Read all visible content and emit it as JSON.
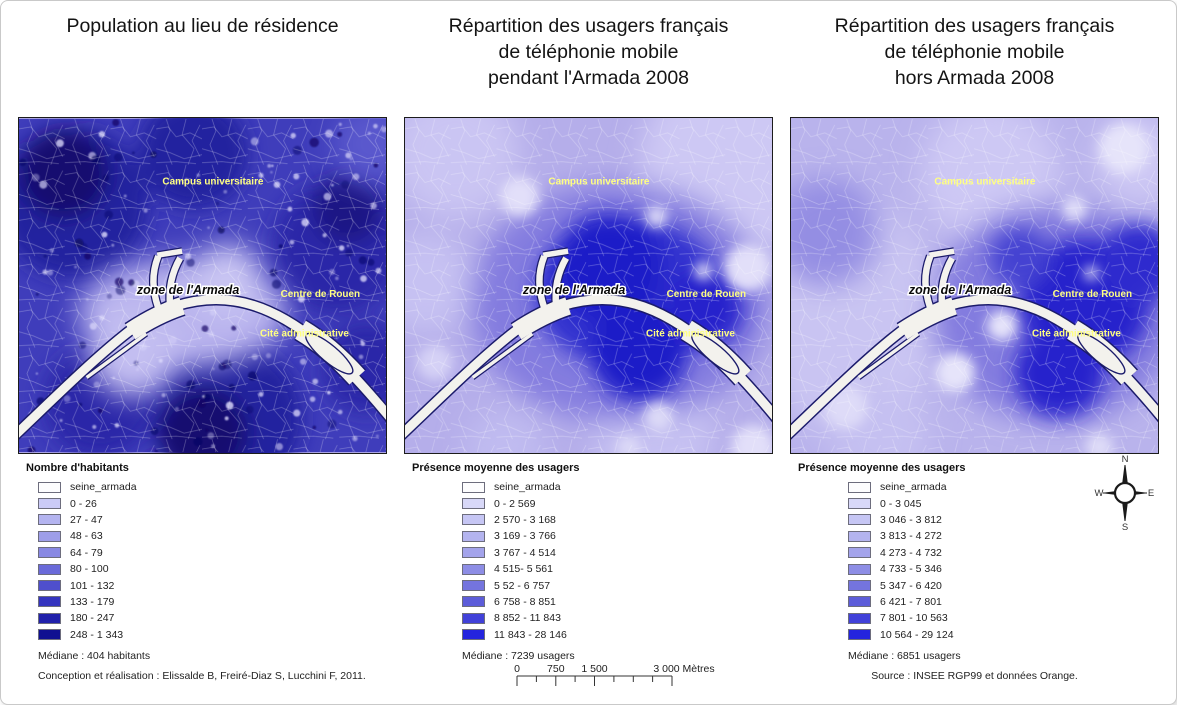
{
  "figure": {
    "map_labels": {
      "campus": "Campus universitaire",
      "armada": "zone de l'Armada",
      "centre": "Centre de Rouen",
      "cite": "Cité administrative"
    },
    "compass": {
      "north": "N",
      "east": "E",
      "south": "S",
      "west": "W"
    },
    "panels": [
      {
        "title": "Population au lieu de résidence",
        "legend_title": "Nombre d'habitants",
        "legend_items": [
          {
            "label": "seine_armada",
            "color": "#fdfdfe"
          },
          {
            "label": "0 - 26",
            "color": "#cbcbf6"
          },
          {
            "label": "27 - 47",
            "color": "#b4b4f0"
          },
          {
            "label": "48 - 63",
            "color": "#9e9ee9"
          },
          {
            "label": "64 - 79",
            "color": "#8888e3"
          },
          {
            "label": "80 - 100",
            "color": "#6a6ad9"
          },
          {
            "label": "101 - 132",
            "color": "#4f4fcd"
          },
          {
            "label": "133 - 179",
            "color": "#3434bf"
          },
          {
            "label": "180 - 247",
            "color": "#2121ab"
          },
          {
            "label": "248 - 1 343",
            "color": "#101091"
          }
        ],
        "median": "Médiane : 404 habitants",
        "footnote": "Conception et réalisation : Elissalde B, Freiré-Diaz S, Lucchini F, 2011."
      },
      {
        "title": "Répartition des usagers français\nde téléphonie mobile\npendant l'Armada 2008",
        "legend_title": "Présence moyenne des usagers",
        "legend_items": [
          {
            "label": "seine_armada",
            "color": "#fdfdfe"
          },
          {
            "label": "0 - 2 569",
            "color": "#d8d8f8"
          },
          {
            "label": "2 570 - 3 168",
            "color": "#c6c6f4"
          },
          {
            "label": "3 169 - 3 766",
            "color": "#b4b4ef"
          },
          {
            "label": "3 767 - 4 514",
            "color": "#a3a3eb"
          },
          {
            "label": "4 515- 5 561",
            "color": "#8d8de5"
          },
          {
            "label": "5 52 - 6 757",
            "color": "#7474de"
          },
          {
            "label": "6 758 - 8 851",
            "color": "#5c5cd9"
          },
          {
            "label": "8 852 - 11 843",
            "color": "#4141d9"
          },
          {
            "label": "11 843 - 28 146",
            "color": "#2424de"
          }
        ],
        "median": "Médiane : 7239 usagers",
        "scale_bar": {
          "labels": [
            "0",
            "750",
            "1 500",
            "3 000 Mètres"
          ]
        }
      },
      {
        "title": "Répartition des usagers français\nde téléphonie mobile\nhors Armada 2008",
        "legend_title": "Présence moyenne des usagers",
        "legend_items": [
          {
            "label": "seine_armada",
            "color": "#fdfdfe"
          },
          {
            "label": "0 - 3 045",
            "color": "#d8d8f8"
          },
          {
            "label": "3 046 - 3 812",
            "color": "#c6c6f4"
          },
          {
            "label": "3 813 - 4 272",
            "color": "#b4b4ef"
          },
          {
            "label": "4 273 - 4 732",
            "color": "#a3a3eb"
          },
          {
            "label": "4 733 - 5 346",
            "color": "#8d8de5"
          },
          {
            "label": "5 347 - 6 420",
            "color": "#7474de"
          },
          {
            "label": "6 421 - 7 801",
            "color": "#5c5cd9"
          },
          {
            "label": "7 801 - 10 563",
            "color": "#4141d9"
          },
          {
            "label": "10 564 - 29 124",
            "color": "#2424de"
          }
        ],
        "median": "Médiane : 6851 usagers",
        "footnote": "Source : INSEE RGP99 et données Orange."
      }
    ]
  }
}
